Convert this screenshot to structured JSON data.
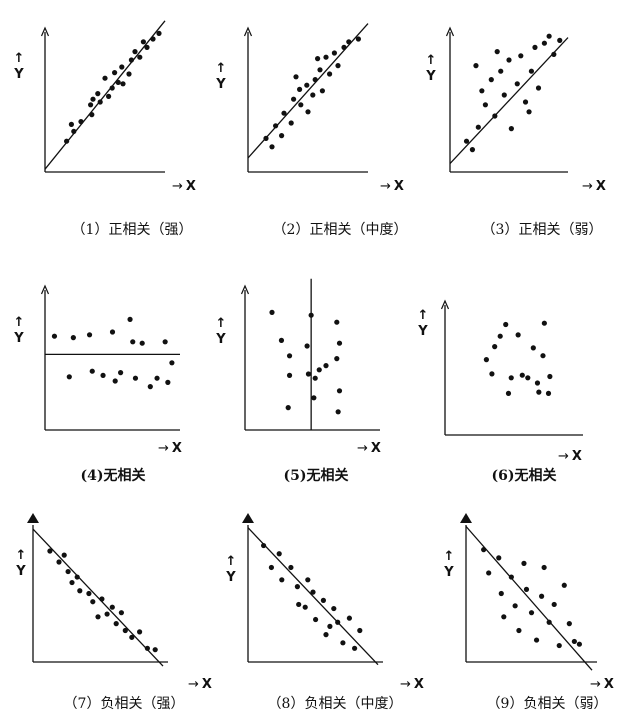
{
  "figure": {
    "background": "#ffffff",
    "ink": "#111111"
  },
  "chart_data": [
    {
      "id": "p1",
      "type": "scatter",
      "caption": "（1）正相关（强）",
      "xlabel": "X",
      "ylabel": "Y",
      "xlim": [
        0,
        10
      ],
      "ylim": [
        0,
        10
      ],
      "arrow": "simple",
      "fit_line": {
        "type": "line",
        "x1": 0,
        "y1": 0.2,
        "x2": 10,
        "y2": 10.8
      },
      "points": [
        [
          1.8,
          2.2
        ],
        [
          2.4,
          2.9
        ],
        [
          2.2,
          3.4
        ],
        [
          3.0,
          3.6
        ],
        [
          3.9,
          4.1
        ],
        [
          3.8,
          4.8
        ],
        [
          4.6,
          5.0
        ],
        [
          4.4,
          5.6
        ],
        [
          5.3,
          5.4
        ],
        [
          5.6,
          6.0
        ],
        [
          6.1,
          6.4
        ],
        [
          6.5,
          6.3
        ],
        [
          5.8,
          7.1
        ],
        [
          6.4,
          7.5
        ],
        [
          7.0,
          7.0
        ],
        [
          7.2,
          8.0
        ],
        [
          7.9,
          8.2
        ],
        [
          7.5,
          8.6
        ],
        [
          8.5,
          8.9
        ],
        [
          8.2,
          9.3
        ],
        [
          9.0,
          9.5
        ],
        [
          9.5,
          9.9
        ],
        [
          5.0,
          6.7
        ],
        [
          4.0,
          5.2
        ]
      ]
    },
    {
      "id": "p2",
      "type": "scatter",
      "caption": "（2）正相关（中度）",
      "xlabel": "X",
      "ylabel": "Y",
      "xlim": [
        0,
        10
      ],
      "ylim": [
        0,
        10
      ],
      "arrow": "simple",
      "fit_line": {
        "type": "line",
        "x1": 0,
        "y1": 1.0,
        "x2": 10,
        "y2": 10.6
      },
      "points": [
        [
          1.5,
          2.4
        ],
        [
          2.0,
          1.8
        ],
        [
          2.3,
          3.3
        ],
        [
          2.8,
          2.6
        ],
        [
          3.0,
          4.2
        ],
        [
          3.6,
          3.5
        ],
        [
          3.8,
          5.2
        ],
        [
          4.4,
          4.8
        ],
        [
          4.3,
          5.9
        ],
        [
          4.9,
          6.2
        ],
        [
          5.0,
          4.3
        ],
        [
          5.6,
          6.6
        ],
        [
          5.4,
          5.5
        ],
        [
          6.0,
          7.3
        ],
        [
          6.2,
          5.8
        ],
        [
          6.8,
          7.0
        ],
        [
          6.5,
          8.2
        ],
        [
          7.2,
          8.5
        ],
        [
          7.5,
          7.6
        ],
        [
          8.0,
          8.9
        ],
        [
          8.4,
          9.3
        ],
        [
          9.2,
          9.5
        ],
        [
          5.8,
          8.1
        ],
        [
          4.0,
          6.8
        ]
      ]
    },
    {
      "id": "p3",
      "type": "scatter",
      "caption": "（3）正相关（弱）",
      "xlabel": "X",
      "ylabel": "Y",
      "xlim": [
        0,
        10
      ],
      "ylim": [
        0,
        10
      ],
      "arrow": "simple",
      "fit_line": {
        "type": "line",
        "x1": 0,
        "y1": 0.6,
        "x2": 10,
        "y2": 9.6
      },
      "points": [
        [
          1.4,
          2.2
        ],
        [
          1.9,
          1.6
        ],
        [
          2.4,
          3.2
        ],
        [
          2.7,
          5.8
        ],
        [
          3.0,
          4.8
        ],
        [
          3.5,
          6.6
        ],
        [
          3.8,
          4.0
        ],
        [
          4.3,
          7.2
        ],
        [
          4.6,
          5.5
        ],
        [
          5.0,
          8.0
        ],
        [
          5.2,
          3.1
        ],
        [
          5.7,
          6.3
        ],
        [
          6.0,
          8.3
        ],
        [
          6.4,
          5.0
        ],
        [
          6.9,
          7.2
        ],
        [
          7.2,
          8.9
        ],
        [
          7.5,
          6.0
        ],
        [
          8.0,
          9.2
        ],
        [
          8.4,
          9.7
        ],
        [
          8.8,
          8.4
        ],
        [
          9.3,
          9.4
        ],
        [
          4.0,
          8.6
        ],
        [
          6.7,
          4.3
        ],
        [
          2.2,
          7.6
        ]
      ]
    },
    {
      "id": "p4",
      "type": "scatter",
      "caption": "(4)无相关",
      "xlabel": "X",
      "ylabel": "Y",
      "xlim": [
        0,
        10
      ],
      "ylim": [
        0,
        10
      ],
      "arrow": "simple",
      "fit_line": {
        "type": "line",
        "x1": 0,
        "y1": 5.4,
        "x2": 10,
        "y2": 5.4
      },
      "points": [
        [
          0.7,
          6.7
        ],
        [
          1.8,
          3.8
        ],
        [
          2.1,
          6.6
        ],
        [
          3.3,
          6.8
        ],
        [
          3.5,
          4.2
        ],
        [
          4.3,
          3.9
        ],
        [
          5.0,
          7.0
        ],
        [
          5.2,
          3.5
        ],
        [
          5.6,
          4.1
        ],
        [
          6.3,
          7.9
        ],
        [
          6.5,
          6.3
        ],
        [
          6.7,
          3.7
        ],
        [
          7.2,
          6.2
        ],
        [
          7.8,
          3.1
        ],
        [
          8.3,
          3.7
        ],
        [
          8.9,
          6.3
        ],
        [
          9.1,
          3.4
        ],
        [
          9.4,
          4.8
        ]
      ]
    },
    {
      "id": "p5",
      "type": "scatter",
      "caption": "(5)无相关",
      "xlabel": "X",
      "ylabel": "Y",
      "xlim": [
        0,
        10
      ],
      "ylim": [
        0,
        10
      ],
      "arrow": "simple",
      "fit_line": {
        "type": "line",
        "x1": 4.9,
        "y1": 0,
        "x2": 4.9,
        "y2": 10.8
      },
      "points": [
        [
          2.0,
          8.4
        ],
        [
          2.7,
          6.4
        ],
        [
          3.3,
          5.3
        ],
        [
          3.3,
          3.9
        ],
        [
          3.2,
          1.6
        ],
        [
          4.9,
          8.2
        ],
        [
          4.6,
          6.0
        ],
        [
          5.2,
          3.7
        ],
        [
          5.5,
          4.3
        ],
        [
          5.1,
          2.3
        ],
        [
          6.0,
          4.6
        ],
        [
          6.8,
          7.7
        ],
        [
          7.0,
          6.2
        ],
        [
          6.8,
          5.1
        ],
        [
          7.0,
          2.8
        ],
        [
          6.9,
          1.3
        ],
        [
          4.7,
          4.0
        ]
      ]
    },
    {
      "id": "p6",
      "type": "scatter",
      "caption": "(6)无相关",
      "xlabel": "X",
      "ylabel": "Y",
      "xlim": [
        0,
        10
      ],
      "ylim": [
        0,
        10
      ],
      "arrow": "simple",
      "points": [
        [
          3.0,
          5.8
        ],
        [
          3.4,
          4.7
        ],
        [
          3.6,
          6.8
        ],
        [
          4.4,
          8.5
        ],
        [
          4.0,
          7.6
        ],
        [
          4.8,
          4.4
        ],
        [
          4.6,
          3.2
        ],
        [
          5.3,
          7.7
        ],
        [
          5.6,
          4.6
        ],
        [
          6.0,
          4.4
        ],
        [
          6.4,
          6.7
        ],
        [
          6.7,
          4.0
        ],
        [
          6.8,
          3.3
        ],
        [
          7.1,
          6.1
        ],
        [
          7.2,
          8.6
        ],
        [
          7.6,
          4.5
        ],
        [
          7.5,
          3.2
        ]
      ]
    },
    {
      "id": "p7",
      "type": "scatter",
      "caption": "（7）负相关（强）",
      "xlabel": "X",
      "ylabel": "Y",
      "xlim": [
        0,
        10
      ],
      "ylim": [
        0,
        10
      ],
      "arrow": "filled",
      "fit_line": {
        "type": "line",
        "x1": 0,
        "y1": 9.7,
        "x2": 10,
        "y2": -0.3
      },
      "points": [
        [
          1.3,
          8.1
        ],
        [
          2.0,
          7.3
        ],
        [
          2.7,
          6.6
        ],
        [
          2.4,
          7.8
        ],
        [
          3.0,
          5.8
        ],
        [
          3.6,
          5.2
        ],
        [
          4.3,
          5.0
        ],
        [
          4.6,
          4.4
        ],
        [
          5.3,
          4.6
        ],
        [
          5.7,
          3.5
        ],
        [
          6.1,
          4.0
        ],
        [
          6.8,
          3.6
        ],
        [
          6.4,
          2.8
        ],
        [
          7.1,
          2.3
        ],
        [
          7.6,
          1.8
        ],
        [
          8.2,
          2.2
        ],
        [
          8.8,
          1.0
        ],
        [
          9.4,
          0.9
        ],
        [
          3.4,
          6.2
        ],
        [
          5.0,
          3.3
        ]
      ]
    },
    {
      "id": "p8",
      "type": "scatter",
      "caption": "（8）负相关（中度）",
      "xlabel": "X",
      "ylabel": "Y",
      "xlim": [
        0,
        10
      ],
      "ylim": [
        0,
        10
      ],
      "arrow": "filled",
      "fit_line": {
        "type": "line",
        "x1": 0,
        "y1": 9.8,
        "x2": 10,
        "y2": -0.2
      },
      "points": [
        [
          1.2,
          8.5
        ],
        [
          1.8,
          6.9
        ],
        [
          2.4,
          7.9
        ],
        [
          2.6,
          6.0
        ],
        [
          3.3,
          6.9
        ],
        [
          3.8,
          5.5
        ],
        [
          4.4,
          4.0
        ],
        [
          4.6,
          6.0
        ],
        [
          5.0,
          5.1
        ],
        [
          5.2,
          3.1
        ],
        [
          5.8,
          4.5
        ],
        [
          6.0,
          2.0
        ],
        [
          6.6,
          3.9
        ],
        [
          6.9,
          2.9
        ],
        [
          7.3,
          1.4
        ],
        [
          7.8,
          3.2
        ],
        [
          8.2,
          1.0
        ],
        [
          8.6,
          2.3
        ],
        [
          6.3,
          2.6
        ],
        [
          3.9,
          4.2
        ]
      ]
    },
    {
      "id": "p9",
      "type": "scatter",
      "caption": "（9）负相关（弱）",
      "xlabel": "X",
      "ylabel": "Y",
      "xlim": [
        0,
        10
      ],
      "ylim": [
        0,
        10
      ],
      "arrow": "filled",
      "fit_line": {
        "type": "line",
        "x1": 0,
        "y1": 9.9,
        "x2": 10,
        "y2": -0.6
      },
      "points": [
        [
          1.4,
          8.2
        ],
        [
          1.8,
          6.5
        ],
        [
          2.6,
          7.6
        ],
        [
          2.8,
          5.0
        ],
        [
          3.0,
          3.3
        ],
        [
          3.6,
          6.2
        ],
        [
          3.9,
          4.1
        ],
        [
          4.2,
          2.3
        ],
        [
          4.6,
          7.2
        ],
        [
          4.8,
          5.3
        ],
        [
          5.2,
          3.6
        ],
        [
          5.6,
          1.6
        ],
        [
          6.0,
          4.8
        ],
        [
          6.2,
          6.9
        ],
        [
          6.6,
          2.9
        ],
        [
          7.0,
          4.2
        ],
        [
          7.4,
          1.2
        ],
        [
          7.8,
          5.6
        ],
        [
          8.2,
          2.8
        ],
        [
          8.6,
          1.5
        ],
        [
          9.0,
          1.3
        ]
      ]
    }
  ]
}
